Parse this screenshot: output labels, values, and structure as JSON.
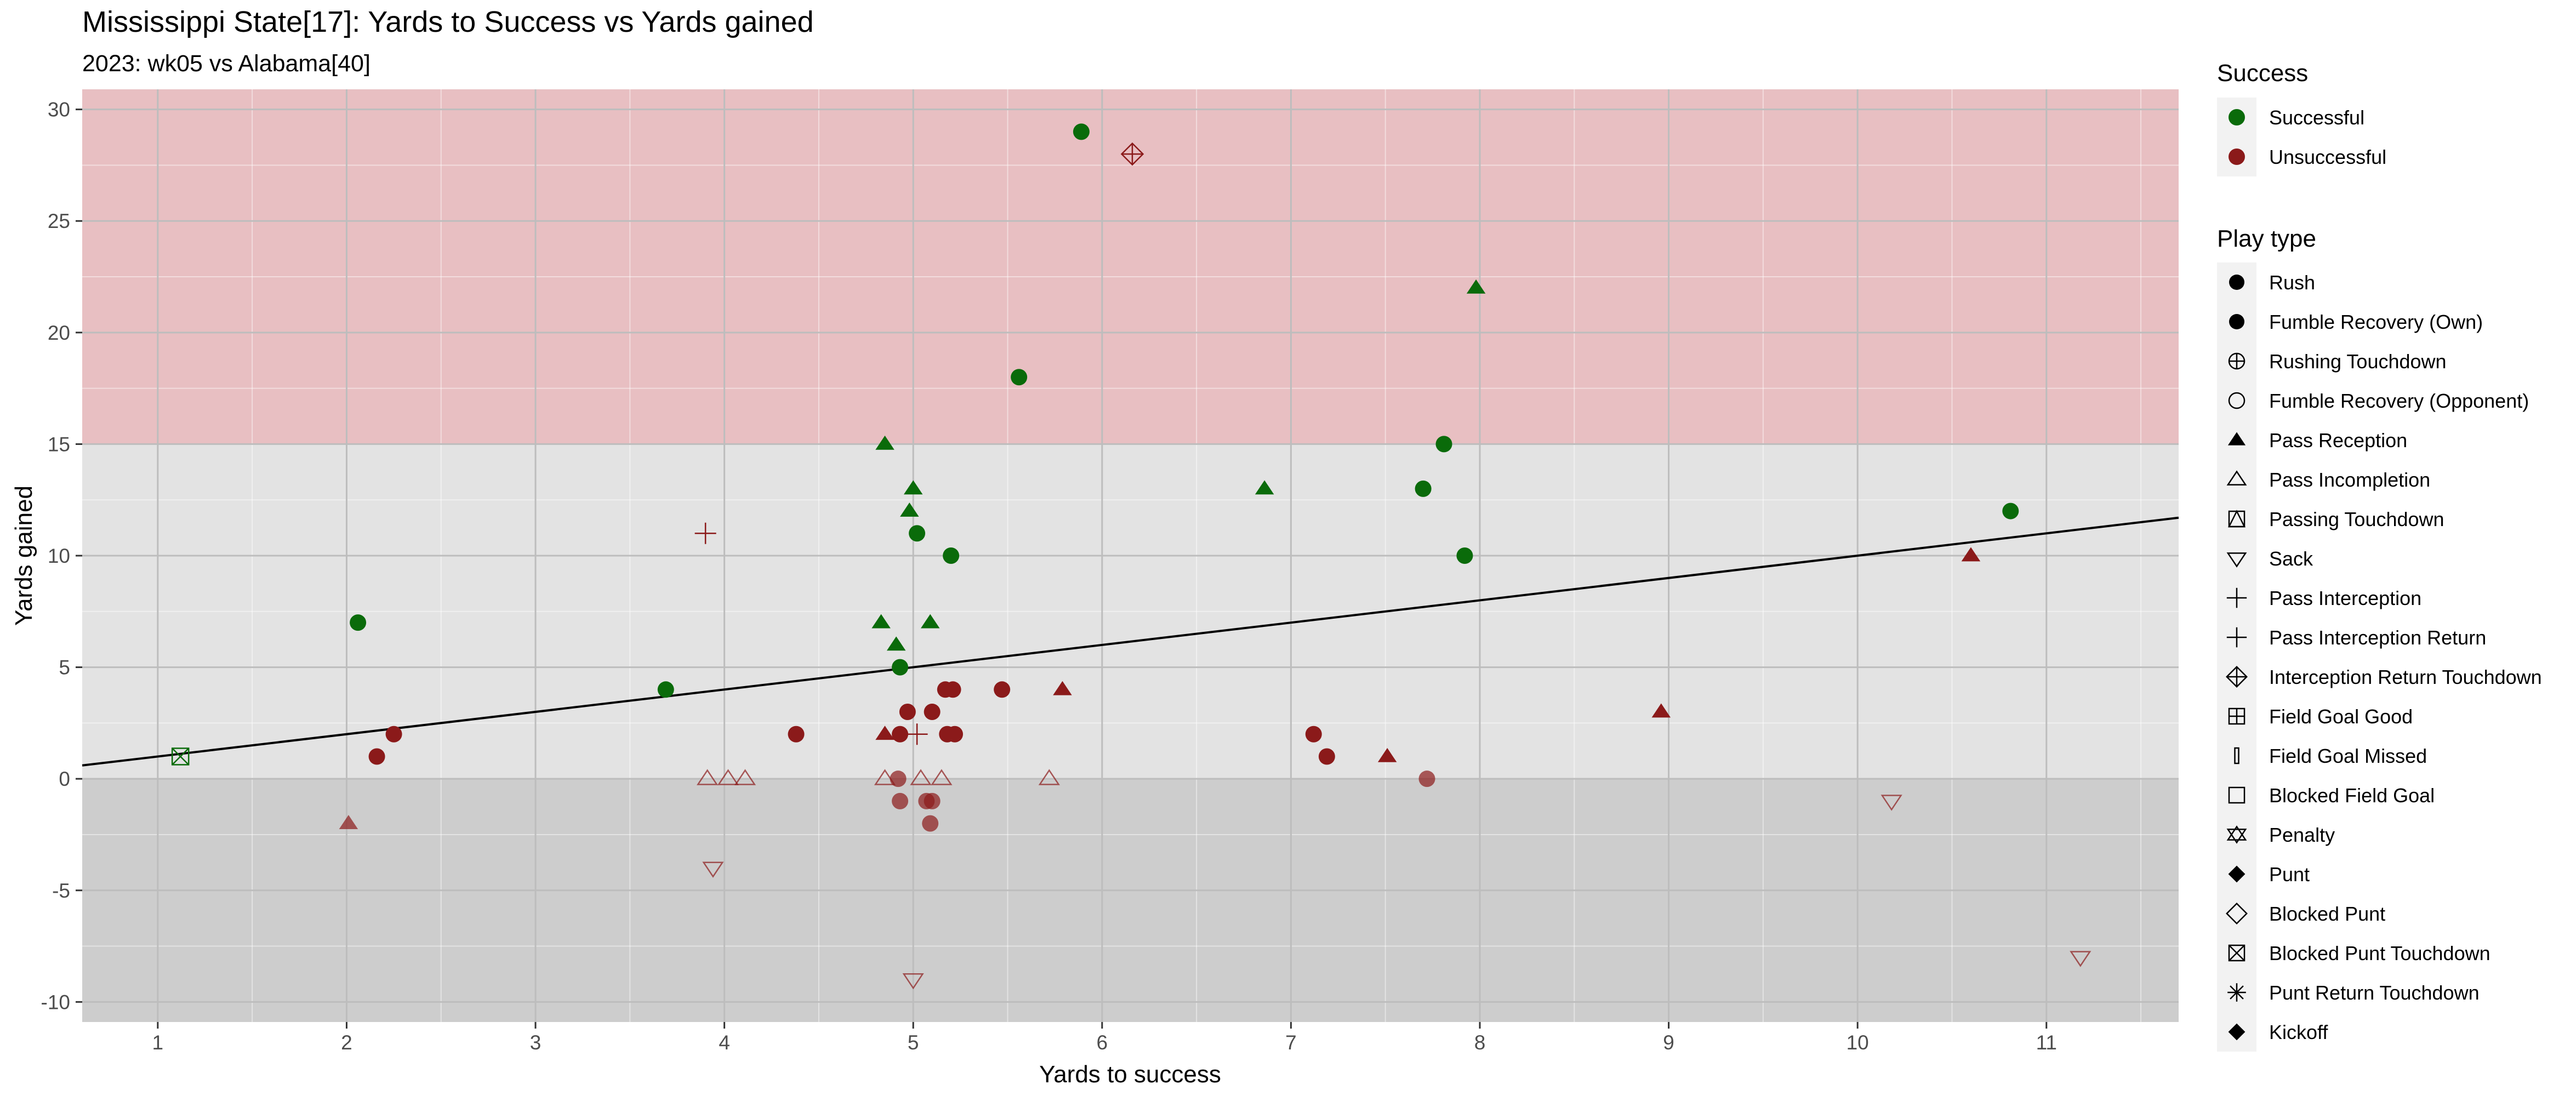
{
  "chart_data": {
    "type": "scatter",
    "title": "Mississippi State[17]: Yards to Success vs Yards gained",
    "subtitle": "2023: wk05 vs Alabama[40]",
    "xlabel": "Yards to success",
    "ylabel": "Yards gained",
    "xlim": [
      0.6,
      11.7
    ],
    "ylim": [
      -10.9,
      30.9
    ],
    "x_ticks": [
      "1",
      "2",
      "3",
      "4",
      "5",
      "6",
      "7",
      "8",
      "9",
      "10",
      "11"
    ],
    "y_ticks": [
      "-10",
      "-5",
      "0",
      "5",
      "10",
      "15",
      "20",
      "25",
      "30"
    ],
    "grid": true,
    "bands": [
      {
        "from": 15,
        "to": 30.9,
        "color": "#e8bfc2"
      },
      {
        "from": 0,
        "to": 15,
        "color": "#e3e3e3"
      },
      {
        "from": -10.9,
        "to": 0,
        "color": "#cdcdcd"
      }
    ],
    "trend_line": {
      "x": [
        0.6,
        11.7
      ],
      "y": [
        0.6,
        11.7
      ]
    },
    "colors": {
      "successful": "#0a6b0a",
      "unsuccessful": "#8b1a1a"
    },
    "legend_success": {
      "title": "Success",
      "items": [
        {
          "label": "Successful",
          "key": "successful"
        },
        {
          "label": "Unsuccessful",
          "key": "unsuccessful"
        }
      ]
    },
    "legend_playtype": {
      "title": "Play type",
      "items": [
        {
          "label": "Rush",
          "shape": "circle"
        },
        {
          "label": "Fumble Recovery (Own)",
          "shape": "circle"
        },
        {
          "label": "Rushing Touchdown",
          "shape": "circle-plus"
        },
        {
          "label": "Fumble Recovery (Opponent)",
          "shape": "circle-open"
        },
        {
          "label": "Pass Reception",
          "shape": "triangle"
        },
        {
          "label": "Pass Incompletion",
          "shape": "triangle-open"
        },
        {
          "label": "Passing Touchdown",
          "shape": "square-triangle"
        },
        {
          "label": "Sack",
          "shape": "triangle-down-open"
        },
        {
          "label": "Pass Interception",
          "shape": "plus"
        },
        {
          "label": "Pass Interception Return",
          "shape": "plus"
        },
        {
          "label": "Interception Return Touchdown",
          "shape": "diamond-plus"
        },
        {
          "label": "Field Goal Good",
          "shape": "square-plus"
        },
        {
          "label": "Field Goal Missed",
          "shape": "bar"
        },
        {
          "label": "Blocked Field Goal",
          "shape": "square-open"
        },
        {
          "label": "Penalty",
          "shape": "star-of-david"
        },
        {
          "label": "Punt",
          "shape": "diamond"
        },
        {
          "label": "Blocked Punt",
          "shape": "diamond-open"
        },
        {
          "label": "Blocked Punt Touchdown",
          "shape": "square-x"
        },
        {
          "label": "Punt Return Touchdown",
          "shape": "asterisk"
        },
        {
          "label": "Kickoff",
          "shape": "diamond"
        }
      ]
    },
    "points": [
      {
        "x": 5.89,
        "y": 29,
        "success": true,
        "shape": "circle"
      },
      {
        "x": 6.16,
        "y": 28,
        "success": false,
        "shape": "diamond-plus"
      },
      {
        "x": 7.98,
        "y": 22,
        "success": true,
        "shape": "triangle"
      },
      {
        "x": 5.56,
        "y": 18,
        "success": true,
        "shape": "circle"
      },
      {
        "x": 4.85,
        "y": 15,
        "success": true,
        "shape": "triangle"
      },
      {
        "x": 7.81,
        "y": 15,
        "success": true,
        "shape": "circle"
      },
      {
        "x": 5.0,
        "y": 13,
        "success": true,
        "shape": "triangle"
      },
      {
        "x": 6.86,
        "y": 13,
        "success": true,
        "shape": "triangle"
      },
      {
        "x": 7.7,
        "y": 13,
        "success": true,
        "shape": "circle"
      },
      {
        "x": 4.98,
        "y": 12,
        "success": true,
        "shape": "triangle"
      },
      {
        "x": 10.81,
        "y": 12,
        "success": true,
        "shape": "circle"
      },
      {
        "x": 5.02,
        "y": 11,
        "success": true,
        "shape": "circle"
      },
      {
        "x": 3.9,
        "y": 11,
        "success": false,
        "shape": "plus"
      },
      {
        "x": 5.2,
        "y": 10,
        "success": true,
        "shape": "circle"
      },
      {
        "x": 7.92,
        "y": 10,
        "success": true,
        "shape": "circle"
      },
      {
        "x": 10.6,
        "y": 10,
        "success": false,
        "shape": "triangle"
      },
      {
        "x": 2.06,
        "y": 7,
        "success": true,
        "shape": "circle"
      },
      {
        "x": 4.83,
        "y": 7,
        "success": true,
        "shape": "triangle"
      },
      {
        "x": 5.09,
        "y": 7,
        "success": true,
        "shape": "triangle"
      },
      {
        "x": 4.91,
        "y": 6,
        "success": true,
        "shape": "triangle"
      },
      {
        "x": 4.93,
        "y": 5,
        "success": true,
        "shape": "circle"
      },
      {
        "x": 3.69,
        "y": 4,
        "success": true,
        "shape": "circle"
      },
      {
        "x": 5.17,
        "y": 4,
        "success": false,
        "shape": "circle"
      },
      {
        "x": 5.21,
        "y": 4,
        "success": false,
        "shape": "circle"
      },
      {
        "x": 5.47,
        "y": 4,
        "success": false,
        "shape": "circle"
      },
      {
        "x": 5.79,
        "y": 4,
        "success": false,
        "shape": "triangle"
      },
      {
        "x": 4.97,
        "y": 3,
        "success": false,
        "shape": "circle"
      },
      {
        "x": 5.1,
        "y": 3,
        "success": false,
        "shape": "circle"
      },
      {
        "x": 8.96,
        "y": 3,
        "success": false,
        "shape": "triangle"
      },
      {
        "x": 2.25,
        "y": 2,
        "success": false,
        "shape": "circle"
      },
      {
        "x": 4.38,
        "y": 2,
        "success": false,
        "shape": "circle"
      },
      {
        "x": 4.85,
        "y": 2,
        "success": false,
        "shape": "triangle"
      },
      {
        "x": 4.93,
        "y": 2,
        "success": false,
        "shape": "circle"
      },
      {
        "x": 5.02,
        "y": 2,
        "success": false,
        "shape": "plus"
      },
      {
        "x": 5.18,
        "y": 2,
        "success": false,
        "shape": "circle"
      },
      {
        "x": 5.22,
        "y": 2,
        "success": false,
        "shape": "circle"
      },
      {
        "x": 7.12,
        "y": 2,
        "success": false,
        "shape": "circle"
      },
      {
        "x": 2.16,
        "y": 1,
        "success": false,
        "shape": "circle"
      },
      {
        "x": 1.12,
        "y": 1,
        "success": true,
        "shape": "square-x"
      },
      {
        "x": 7.19,
        "y": 1,
        "success": false,
        "shape": "circle"
      },
      {
        "x": 7.51,
        "y": 1,
        "success": false,
        "shape": "triangle"
      },
      {
        "x": 3.91,
        "y": 0,
        "success": false,
        "shape": "triangle-open"
      },
      {
        "x": 4.02,
        "y": 0,
        "success": false,
        "shape": "triangle-open"
      },
      {
        "x": 4.11,
        "y": 0,
        "success": false,
        "shape": "triangle-open"
      },
      {
        "x": 4.85,
        "y": 0,
        "success": false,
        "shape": "triangle-open"
      },
      {
        "x": 4.92,
        "y": 0,
        "success": false,
        "shape": "circle"
      },
      {
        "x": 5.04,
        "y": 0,
        "success": false,
        "shape": "triangle-open"
      },
      {
        "x": 5.15,
        "y": 0,
        "success": false,
        "shape": "triangle-open"
      },
      {
        "x": 5.72,
        "y": 0,
        "success": false,
        "shape": "triangle-open"
      },
      {
        "x": 7.72,
        "y": 0,
        "success": false,
        "shape": "circle"
      },
      {
        "x": 4.93,
        "y": -1,
        "success": false,
        "shape": "circle"
      },
      {
        "x": 5.07,
        "y": -1,
        "success": false,
        "shape": "circle"
      },
      {
        "x": 5.1,
        "y": -1,
        "success": false,
        "shape": "circle"
      },
      {
        "x": 10.18,
        "y": -1,
        "success": false,
        "shape": "triangle-down-open"
      },
      {
        "x": 2.01,
        "y": -2,
        "success": false,
        "shape": "triangle"
      },
      {
        "x": 5.09,
        "y": -2,
        "success": false,
        "shape": "circle"
      },
      {
        "x": 3.94,
        "y": -4,
        "success": false,
        "shape": "triangle-down-open"
      },
      {
        "x": 11.18,
        "y": -8,
        "success": false,
        "shape": "triangle-down-open"
      },
      {
        "x": 5.0,
        "y": -9,
        "success": false,
        "shape": "triangle-down-open"
      }
    ]
  }
}
